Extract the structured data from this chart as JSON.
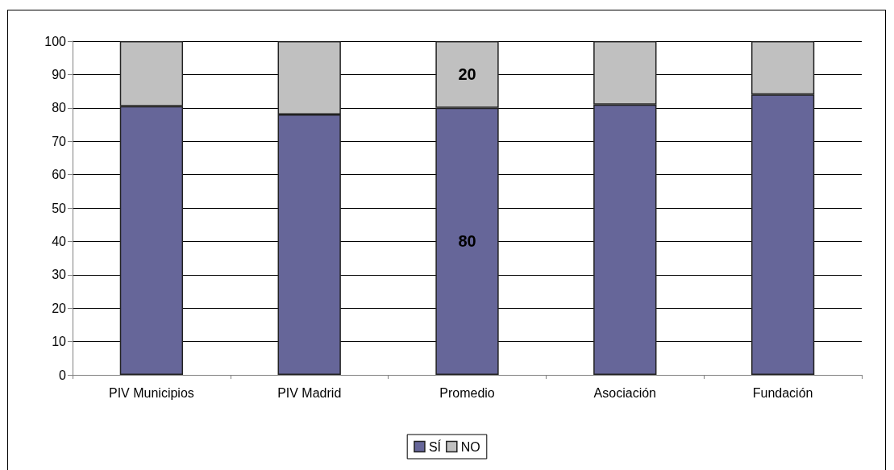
{
  "chart_data": {
    "type": "bar",
    "stacked": true,
    "categories": [
      "PIV Municipios",
      "PIV Madrid",
      "Promedio",
      "Asociación",
      "Fundación"
    ],
    "series": [
      {
        "name": "SÍ",
        "color": "#666699",
        "values": [
          80.5,
          78,
          80,
          81,
          84
        ],
        "value_labels": [
          null,
          null,
          "80",
          null,
          null
        ]
      },
      {
        "name": "NO",
        "color": "#c0c0c0",
        "values": [
          19.5,
          22,
          20,
          19,
          16
        ],
        "value_labels": [
          null,
          null,
          "20",
          null,
          null
        ]
      }
    ],
    "ylim": [
      0,
      100
    ],
    "yticks": [
      0,
      10,
      20,
      30,
      40,
      50,
      60,
      70,
      80,
      90,
      100
    ],
    "grid": "y",
    "legend": "bottom"
  }
}
